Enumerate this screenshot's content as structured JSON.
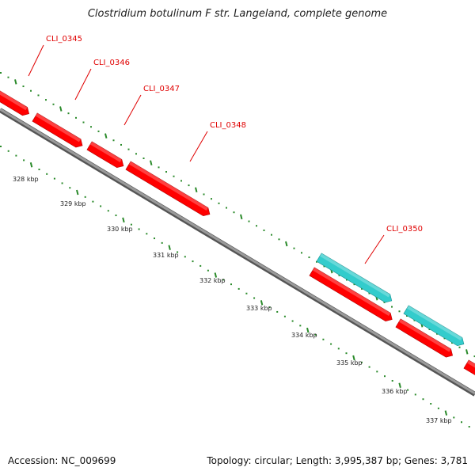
{
  "title": "Clostridium botulinum F str. Langeland, complete genome",
  "footer": {
    "accession": "Accession: NC_009699",
    "topology": "Topology: circular; Length: 3,995,387 bp; Genes: 3,781"
  },
  "colors": {
    "gene_red": "#ff0000",
    "gene_cyan": "#33cccc",
    "backbone": "#888888",
    "tick_green": "#2a8a2a",
    "label_red": "#e00000"
  },
  "ruler": [
    "328 kbp",
    "329 kbp",
    "330 kbp",
    "331 kbp",
    "332 kbp",
    "333 kbp",
    "334 kbp",
    "335 kbp",
    "336 kbp",
    "337 kbp"
  ],
  "genes": [
    {
      "label": "CLI_0345"
    },
    {
      "label": "CLI_0346"
    },
    {
      "label": "CLI_0347"
    },
    {
      "label": "CLI_0348"
    },
    {
      "label": "CLI_0350"
    }
  ]
}
